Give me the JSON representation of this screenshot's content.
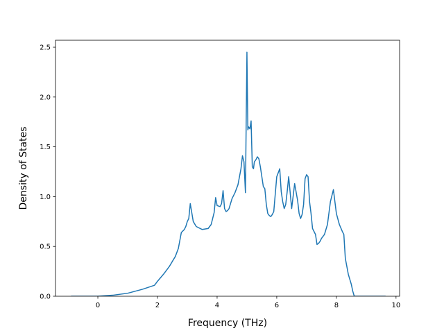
{
  "chart_data": {
    "type": "line",
    "title": "",
    "xlabel": "Frequency (THz)",
    "ylabel": "Density of States",
    "xlim": [
      -1.42,
      10.12
    ],
    "ylim": [
      0.0,
      2.57
    ],
    "xticks": [
      0,
      2,
      4,
      6,
      8,
      10
    ],
    "xtick_labels": [
      "0",
      "2",
      "4",
      "6",
      "8",
      "10"
    ],
    "yticks": [
      0.0,
      0.5,
      1.0,
      1.5,
      2.0,
      2.5
    ],
    "ytick_labels": [
      "0.0",
      "0.5",
      "1.0",
      "1.5",
      "2.0",
      "2.5"
    ],
    "grid": false,
    "legend": "none",
    "series": [
      {
        "color": "#1f77b4",
        "x": [
          -0.9,
          0.0,
          0.5,
          1.0,
          1.5,
          1.9,
          2.0,
          2.2,
          2.4,
          2.6,
          2.7,
          2.8,
          2.9,
          2.95,
          3.0,
          3.05,
          3.1,
          3.2,
          3.3,
          3.5,
          3.7,
          3.8,
          3.85,
          3.9,
          3.95,
          4.0,
          4.1,
          4.15,
          4.2,
          4.25,
          4.3,
          4.35,
          4.4,
          4.5,
          4.6,
          4.7,
          4.8,
          4.85,
          4.9,
          4.95,
          5.0,
          5.03,
          5.06,
          5.1,
          5.14,
          5.18,
          5.22,
          5.25,
          5.3,
          5.35,
          5.4,
          5.45,
          5.5,
          5.55,
          5.6,
          5.65,
          5.7,
          5.75,
          5.8,
          5.85,
          5.9,
          6.0,
          6.1,
          6.15,
          6.2,
          6.25,
          6.3,
          6.35,
          6.4,
          6.5,
          6.6,
          6.7,
          6.75,
          6.8,
          6.85,
          6.9,
          6.95,
          7.0,
          7.05,
          7.1,
          7.15,
          7.2,
          7.3,
          7.35,
          7.4,
          7.45,
          7.5,
          7.6,
          7.7,
          7.8,
          7.9,
          8.0,
          8.1,
          8.2,
          8.25,
          8.3,
          8.4,
          8.5,
          8.55,
          8.6,
          8.65,
          8.7,
          8.75,
          8.8,
          9.0,
          9.5,
          9.65
        ],
        "y": [
          0.0,
          0.0,
          0.01,
          0.03,
          0.07,
          0.11,
          0.15,
          0.22,
          0.3,
          0.4,
          0.48,
          0.64,
          0.67,
          0.7,
          0.75,
          0.78,
          0.93,
          0.75,
          0.7,
          0.67,
          0.68,
          0.72,
          0.78,
          0.84,
          0.99,
          0.91,
          0.9,
          0.93,
          1.06,
          0.88,
          0.85,
          0.86,
          0.88,
          0.98,
          1.04,
          1.12,
          1.28,
          1.41,
          1.35,
          1.04,
          2.45,
          1.67,
          1.7,
          1.68,
          1.76,
          1.3,
          1.28,
          1.35,
          1.37,
          1.4,
          1.38,
          1.3,
          1.2,
          1.1,
          1.08,
          0.92,
          0.83,
          0.81,
          0.8,
          0.82,
          0.85,
          1.2,
          1.28,
          1.05,
          0.95,
          0.88,
          0.92,
          1.05,
          1.2,
          0.88,
          1.13,
          0.96,
          0.83,
          0.78,
          0.82,
          0.92,
          1.18,
          1.22,
          1.2,
          0.95,
          0.83,
          0.68,
          0.62,
          0.52,
          0.53,
          0.55,
          0.58,
          0.62,
          0.72,
          0.95,
          1.07,
          0.83,
          0.72,
          0.65,
          0.62,
          0.38,
          0.22,
          0.12,
          0.05,
          0.0,
          0.0,
          0.0,
          0.0,
          0.0,
          0.0,
          0.0,
          0.0
        ]
      }
    ]
  }
}
